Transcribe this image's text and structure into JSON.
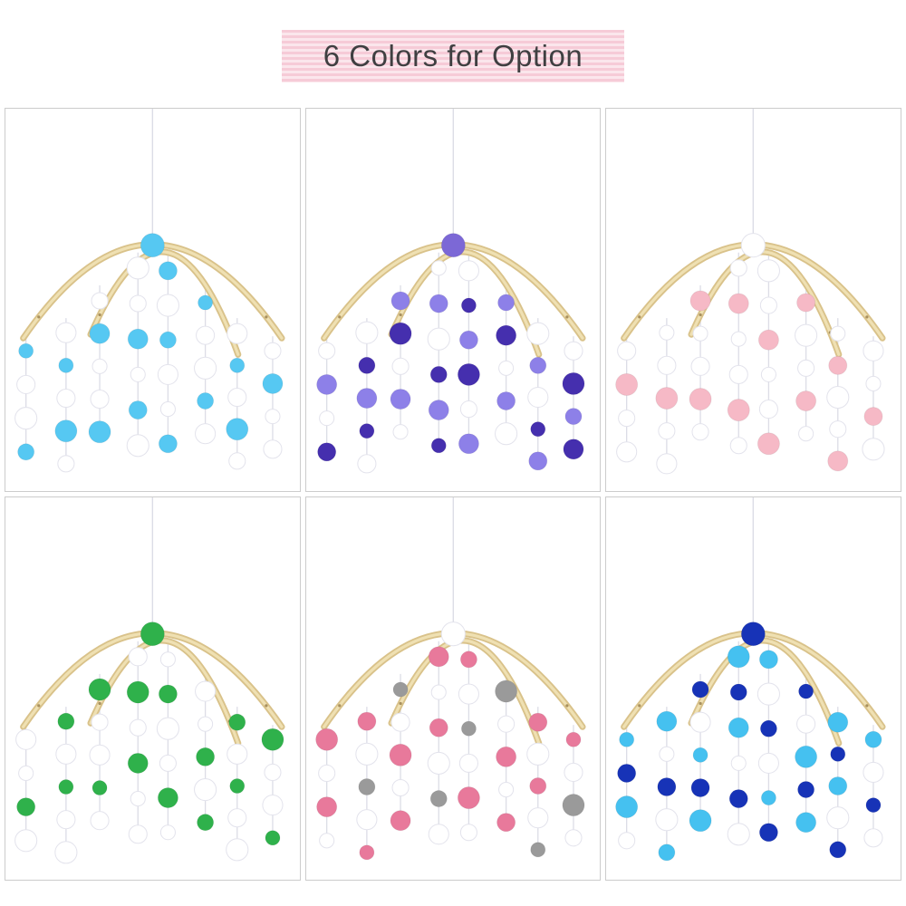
{
  "banner": {
    "title": "6 Colors for Option",
    "stripe_a": "#f6cbd7",
    "stripe_b": "#fbe6ec",
    "text_color": "#3f3f41"
  },
  "grid": {
    "panel_border": "#cccccc",
    "wood_dark": "#d9c28a",
    "wood_light": "#efe0b2",
    "wood_hole": "#a8905e",
    "string_color": "#dcdde6",
    "white_ball_stroke": "#e3e3ec",
    "variants": [
      {
        "name": "blue-white",
        "top": "#56c8f2",
        "sequence": [
          "#56c8f2",
          "#ffffff",
          "#ffffff",
          "#56c8f2",
          "#ffffff"
        ]
      },
      {
        "name": "purple-white",
        "top": "#7c68d6",
        "sequence": [
          "#452fae",
          "#ffffff",
          "#8d80e8",
          "#ffffff",
          "#452fae",
          "#8d80e8"
        ]
      },
      {
        "name": "pink-white",
        "top": "#ffffff",
        "sequence": [
          "#f6b9c6",
          "#ffffff",
          "#ffffff",
          "#f6b9c6",
          "#ffffff",
          "#ffffff"
        ]
      },
      {
        "name": "green-white",
        "top": "#2fb14b",
        "sequence": [
          "#2fb14b",
          "#ffffff",
          "#2fb14b",
          "#ffffff",
          "#ffffff"
        ]
      },
      {
        "name": "pink-gray-white",
        "top": "#ffffff",
        "sequence": [
          "#e8799b",
          "#ffffff",
          "#9a9a9a",
          "#ffffff",
          "#e8799b",
          "#ffffff"
        ]
      },
      {
        "name": "navy-skyblue-white",
        "top": "#1733b7",
        "sequence": [
          "#1733b7",
          "#45c1f0",
          "#ffffff",
          "#1733b7",
          "#ffffff",
          "#45c1f0"
        ]
      }
    ]
  }
}
